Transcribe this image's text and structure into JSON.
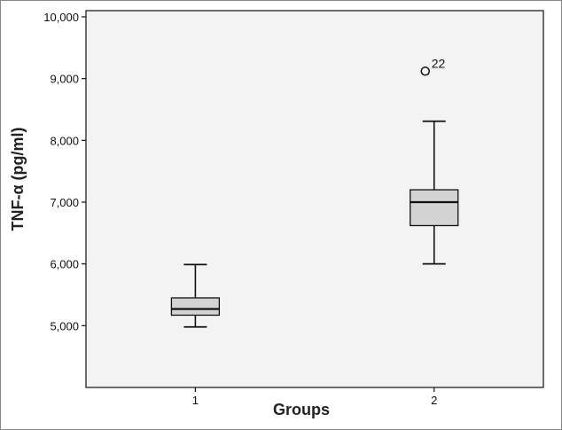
{
  "chart_data": {
    "type": "boxplot",
    "title": "",
    "xlabel": "Groups",
    "ylabel": "TNF-α (pg/ml)",
    "categories": [
      "1",
      "2"
    ],
    "ylim": [
      4000,
      10100
    ],
    "yticks": [
      5000,
      6000,
      7000,
      8000,
      9000,
      10000
    ],
    "ytick_labels": [
      "5,000",
      "6,000",
      "7,000",
      "8,000",
      "9,000",
      "10,000"
    ],
    "grid": false,
    "legend": "none",
    "colors": {
      "box_fill": "#d3d3d3",
      "stroke": "#111111",
      "plot_background": "#f3f3f3"
    },
    "boxes": [
      {
        "group": "1",
        "whisker_low": 4980,
        "q1": 5170,
        "median": 5270,
        "q3": 5450,
        "whisker_high": 5990,
        "outliers": []
      },
      {
        "group": "2",
        "whisker_low": 6000,
        "q1": 6620,
        "median": 7000,
        "q3": 7200,
        "whisker_high": 8310,
        "outliers": [
          {
            "value": 9120,
            "label": "22"
          }
        ]
      }
    ]
  }
}
